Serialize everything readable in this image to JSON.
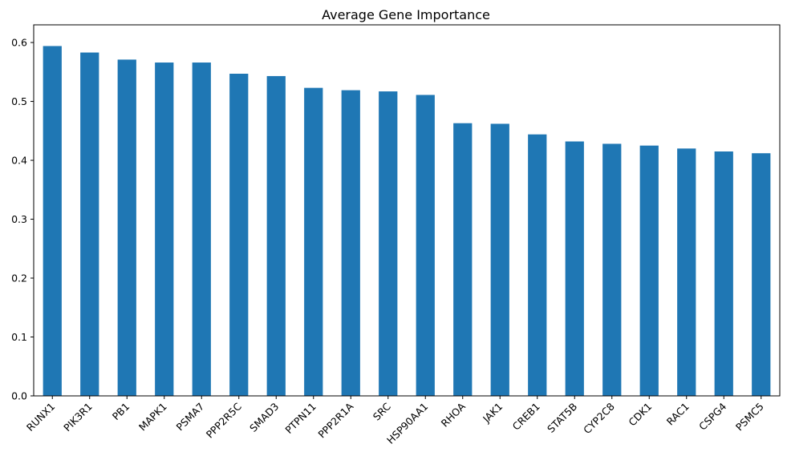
{
  "chart_data": {
    "type": "bar",
    "title": "Average Gene Importance",
    "xlabel": "",
    "ylabel": "",
    "categories": [
      "RUNX1",
      "PIK3R1",
      "PB1",
      "MAPK1",
      "PSMA7",
      "PPP2R5C",
      "SMAD3",
      "PTPN11",
      "PPP2R1A",
      "SRC",
      "HSP90AA1",
      "RHOA",
      "JAK1",
      "CREB1",
      "STAT5B",
      "CYP2C8",
      "CDK1",
      "RAC1",
      "CSPG4",
      "PSMC5"
    ],
    "values": [
      0.594,
      0.583,
      0.571,
      0.566,
      0.566,
      0.547,
      0.543,
      0.523,
      0.519,
      0.517,
      0.511,
      0.463,
      0.462,
      0.444,
      0.432,
      0.428,
      0.425,
      0.42,
      0.415,
      0.412
    ],
    "ylim": [
      0,
      0.63
    ],
    "yticks": [
      0.0,
      0.1,
      0.2,
      0.3,
      0.4,
      0.5,
      0.6
    ],
    "ytick_labels": [
      "0.0",
      "0.1",
      "0.2",
      "0.3",
      "0.4",
      "0.5",
      "0.6"
    ],
    "bar_color": "#1f77b4",
    "grid": false,
    "legend": "none"
  }
}
